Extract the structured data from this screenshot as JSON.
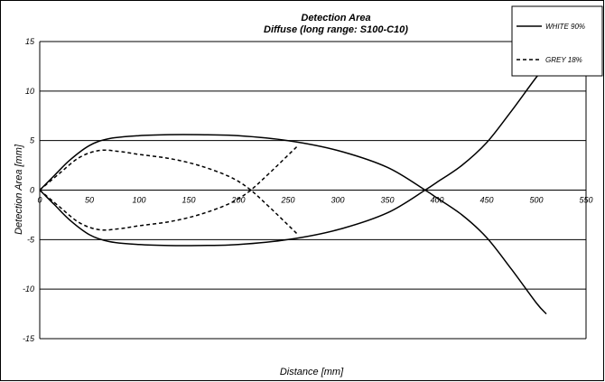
{
  "chart_data": {
    "type": "line",
    "title": "Detection Area",
    "subtitle": "Diffuse (long range: S100-C10)",
    "xlabel": "Distance [mm]",
    "ylabel": "Detection Area [mm]",
    "xlim": [
      0,
      550
    ],
    "ylim": [
      -15,
      15
    ],
    "xticks": [
      0,
      50,
      100,
      150,
      200,
      250,
      300,
      350,
      400,
      450,
      500,
      550
    ],
    "yticks": [
      15,
      10,
      5,
      0,
      -5,
      -10,
      -15
    ],
    "grid": "horizontal",
    "legend_position": "top-right",
    "series": [
      {
        "name": "WHITE 90%",
        "style": "solid",
        "color": "#000000",
        "upper": {
          "x": [
            0,
            15,
            30,
            50,
            70,
            100,
            130,
            160,
            200,
            250,
            300,
            350,
            388,
            400,
            425,
            450,
            475,
            500,
            510
          ],
          "y": [
            0,
            1.5,
            3.0,
            4.5,
            5.2,
            5.5,
            5.6,
            5.6,
            5.5,
            5.0,
            4.0,
            2.3,
            0,
            -0.8,
            -2.5,
            -4.8,
            -8.0,
            -11.4,
            -12.5
          ]
        },
        "lower": {
          "x": [
            0,
            15,
            30,
            50,
            70,
            100,
            130,
            160,
            200,
            250,
            300,
            350,
            388,
            400,
            425,
            450,
            475,
            500,
            510
          ],
          "y": [
            0,
            -1.5,
            -3.0,
            -4.5,
            -5.2,
            -5.5,
            -5.6,
            -5.6,
            -5.5,
            -5.0,
            -4.0,
            -2.3,
            0,
            0.8,
            2.5,
            4.8,
            8.0,
            11.4,
            12.5
          ]
        }
      },
      {
        "name": "GREY 18%",
        "style": "dashed",
        "color": "#000000",
        "upper": {
          "x": [
            0,
            20,
            40,
            60,
            80,
            100,
            130,
            160,
            190,
            210,
            230,
            260
          ],
          "y": [
            0,
            1.7,
            3.3,
            4.0,
            3.9,
            3.6,
            3.2,
            2.5,
            1.4,
            0.2,
            -1.6,
            -4.5
          ]
        },
        "lower": {
          "x": [
            0,
            20,
            40,
            60,
            80,
            100,
            130,
            160,
            190,
            210,
            230,
            260
          ],
          "y": [
            0,
            -1.7,
            -3.3,
            -4.0,
            -3.9,
            -3.6,
            -3.2,
            -2.5,
            -1.4,
            -0.2,
            1.6,
            4.5
          ]
        }
      }
    ]
  }
}
